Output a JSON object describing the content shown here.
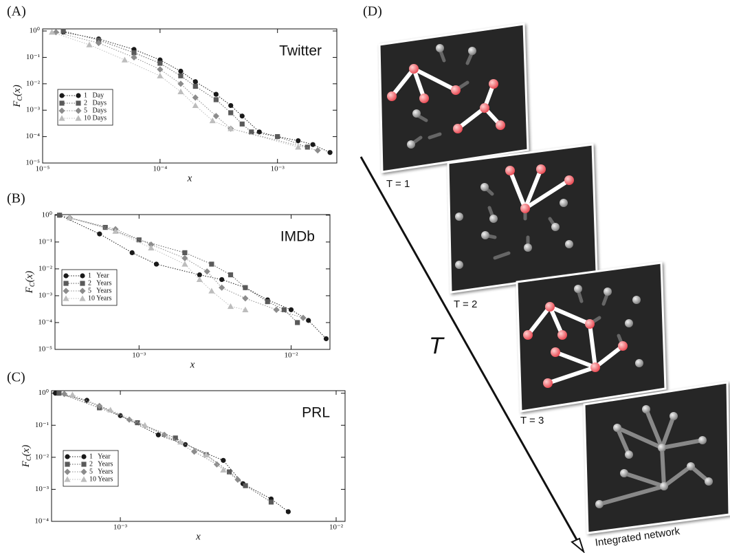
{
  "chart_data": [
    {
      "type": "line",
      "panel_label": "(A)",
      "annotation": "Twitter",
      "x_label": "x",
      "y_label": [
        "F",
        "C",
        "(x)"
      ],
      "log_x": true,
      "log_y": true,
      "legend": "upper left",
      "xlim": [
        1e-05,
        0.0032
      ],
      "ylim": [
        1e-05,
        1.2
      ],
      "xticks": [
        {
          "value": 1e-05,
          "label": "10⁻⁵"
        },
        {
          "value": 0.0001,
          "label": "10⁻⁴"
        },
        {
          "value": 0.001,
          "label": "10⁻³"
        }
      ],
      "yticks": [
        {
          "value": 1e-05,
          "label": "10⁻⁵"
        },
        {
          "value": 0.0001,
          "label": "10⁻⁴"
        },
        {
          "value": 0.001,
          "label": "10⁻³"
        },
        {
          "value": 0.01,
          "label": "10⁻²"
        },
        {
          "value": 0.1,
          "label": "10⁻¹"
        },
        {
          "value": 1,
          "label": "10⁰"
        }
      ],
      "series": [
        {
          "name": "1   Day",
          "color": "#1a1a1a",
          "marker": "circle",
          "x": [
            1.5e-05,
            3e-05,
            6e-05,
            0.0001,
            0.00015,
            0.0002,
            0.0003,
            0.0004,
            0.0005,
            0.0007,
            0.001,
            0.0015,
            0.002,
            0.0028
          ],
          "values": [
            0.9,
            0.5,
            0.2,
            0.08,
            0.03,
            0.012,
            0.004,
            0.0015,
            0.0006,
            0.00015,
            0.0001,
            7e-05,
            5e-05,
            2.5e-05
          ]
        },
        {
          "name": "2   Days",
          "color": "#5a5a5a",
          "marker": "square",
          "x": [
            1.5e-05,
            3e-05,
            6e-05,
            0.0001,
            0.00015,
            0.0002,
            0.0003,
            0.0004,
            0.0005,
            0.0006,
            0.001,
            0.0018
          ],
          "values": [
            1,
            0.45,
            0.15,
            0.06,
            0.02,
            0.008,
            0.0025,
            0.0008,
            0.0003,
            0.00015,
            0.0001,
            4e-05
          ]
        },
        {
          "name": "5   Days",
          "color": "#8c8c8c",
          "marker": "diamond",
          "x": [
            1.3e-05,
            3e-05,
            6e-05,
            0.0001,
            0.00015,
            0.0002,
            0.0003,
            0.0004,
            0.0022
          ],
          "values": [
            0.9,
            0.35,
            0.1,
            0.035,
            0.01,
            0.003,
            0.0006,
            0.0002,
            3e-05
          ]
        },
        {
          "name": "10 Days",
          "color": "#bdbdbd",
          "marker": "triangle",
          "x": [
            1.2e-05,
            2.5e-05,
            5e-05,
            0.0001,
            0.00015,
            0.0002,
            0.00028,
            0.0004,
            0.0015
          ],
          "values": [
            0.9,
            0.3,
            0.08,
            0.02,
            0.005,
            0.0015,
            0.0004,
            0.0002,
            4e-05
          ]
        }
      ]
    },
    {
      "type": "line",
      "panel_label": "(B)",
      "annotation": "IMDb",
      "x_label": "x",
      "y_label": [
        "F",
        "C",
        "(x)"
      ],
      "log_x": true,
      "log_y": true,
      "legend": "middle left",
      "xlim": [
        0.00028,
        0.018
      ],
      "ylim": [
        1e-05,
        1.05
      ],
      "xticks": [
        {
          "value": 0.001,
          "label": "10⁻³"
        },
        {
          "value": 0.01,
          "label": "10⁻²"
        }
      ],
      "yticks": [
        {
          "value": 1e-05,
          "label": "10⁻⁵"
        },
        {
          "value": 0.0001,
          "label": "10⁻⁴"
        },
        {
          "value": 0.001,
          "label": "10⁻³"
        },
        {
          "value": 0.01,
          "label": "10⁻²"
        },
        {
          "value": 0.1,
          "label": "10⁻¹"
        },
        {
          "value": 1,
          "label": "10⁰"
        }
      ],
      "series": [
        {
          "name": "1   Year",
          "color": "#1a1a1a",
          "marker": "circle",
          "x": [
            0.0003,
            0.00055,
            0.0009,
            0.0013,
            0.0025,
            0.0035,
            0.005,
            0.007,
            0.01,
            0.013,
            0.017
          ],
          "values": [
            1,
            0.2,
            0.04,
            0.015,
            0.006,
            0.004,
            0.002,
            0.0007,
            0.0003,
            0.00012,
            2.5e-05
          ]
        },
        {
          "name": "2   Years",
          "color": "#5a5a5a",
          "marker": "square",
          "x": [
            0.0003,
            0.0006,
            0.001,
            0.002,
            0.003,
            0.004,
            0.005,
            0.007,
            0.009,
            0.011
          ],
          "values": [
            1,
            0.35,
            0.12,
            0.04,
            0.015,
            0.006,
            0.002,
            0.0006,
            0.0003,
            0.0001
          ]
        },
        {
          "name": "5   Years",
          "color": "#8c8c8c",
          "marker": "diamond",
          "x": [
            0.00035,
            0.0007,
            0.0012,
            0.002,
            0.0028,
            0.0035,
            0.005,
            0.008,
            0.012
          ],
          "values": [
            0.8,
            0.3,
            0.08,
            0.025,
            0.008,
            0.002,
            0.0008,
            0.0003,
            0.00015
          ]
        },
        {
          "name": "10 Years",
          "color": "#bdbdbd",
          "marker": "triangle",
          "x": [
            0.00035,
            0.0007,
            0.0012,
            0.002,
            0.0025,
            0.003,
            0.004,
            0.005
          ],
          "values": [
            0.8,
            0.25,
            0.06,
            0.015,
            0.004,
            0.0015,
            0.0004,
            0.0003
          ]
        }
      ]
    },
    {
      "type": "line",
      "panel_label": "(C)",
      "annotation": "PRL",
      "x_label": "x",
      "y_label": [
        "F",
        "C",
        "(x)"
      ],
      "log_x": true,
      "log_y": true,
      "legend": "middle left",
      "xlim": [
        0.00048,
        0.011
      ],
      "ylim": [
        0.0001,
        1.2
      ],
      "xticks": [
        {
          "value": 0.001,
          "label": "10⁻³"
        },
        {
          "value": 0.01,
          "label": "10⁻²"
        }
      ],
      "yticks": [
        {
          "value": 0.0001,
          "label": "10⁻⁴"
        },
        {
          "value": 0.001,
          "label": "10⁻³"
        },
        {
          "value": 0.01,
          "label": "10⁻²"
        },
        {
          "value": 0.1,
          "label": "10⁻¹"
        },
        {
          "value": 1,
          "label": "10⁰"
        }
      ],
      "series": [
        {
          "name": "1   Year",
          "color": "#1a1a1a",
          "marker": "circle",
          "x": [
            0.0005,
            0.0007,
            0.001,
            0.0015,
            0.002,
            0.003,
            0.0037,
            0.005,
            0.006
          ],
          "values": [
            1,
            0.6,
            0.2,
            0.05,
            0.025,
            0.008,
            0.0015,
            0.0005,
            0.0002
          ]
        },
        {
          "name": "2   Years",
          "color": "#5a5a5a",
          "marker": "square",
          "x": [
            0.00052,
            0.0008,
            0.0012,
            0.0018,
            0.0025,
            0.0032,
            0.0038,
            0.005
          ],
          "values": [
            1,
            0.35,
            0.12,
            0.04,
            0.012,
            0.0035,
            0.0013,
            0.0004
          ]
        },
        {
          "name": "5   Years",
          "color": "#8c8c8c",
          "marker": "diamond",
          "x": [
            0.00055,
            0.0008,
            0.0011,
            0.0016,
            0.0022,
            0.0028,
            0.0035
          ],
          "values": [
            0.95,
            0.4,
            0.15,
            0.05,
            0.015,
            0.006,
            0.002
          ]
        },
        {
          "name": "10 Years",
          "color": "#bdbdbd",
          "marker": "triangle",
          "x": [
            0.0006,
            0.0009,
            0.0013,
            0.0019,
            0.0025,
            0.003
          ],
          "values": [
            0.9,
            0.3,
            0.1,
            0.03,
            0.012,
            0.004
          ]
        }
      ]
    }
  ],
  "diagram": {
    "panel_label": "(D)",
    "axis_label": "T",
    "frames": [
      {
        "label": "T = 1"
      },
      {
        "label": "T = 2"
      },
      {
        "label": "T = 3"
      },
      {
        "label": "Integrated network"
      }
    ]
  }
}
